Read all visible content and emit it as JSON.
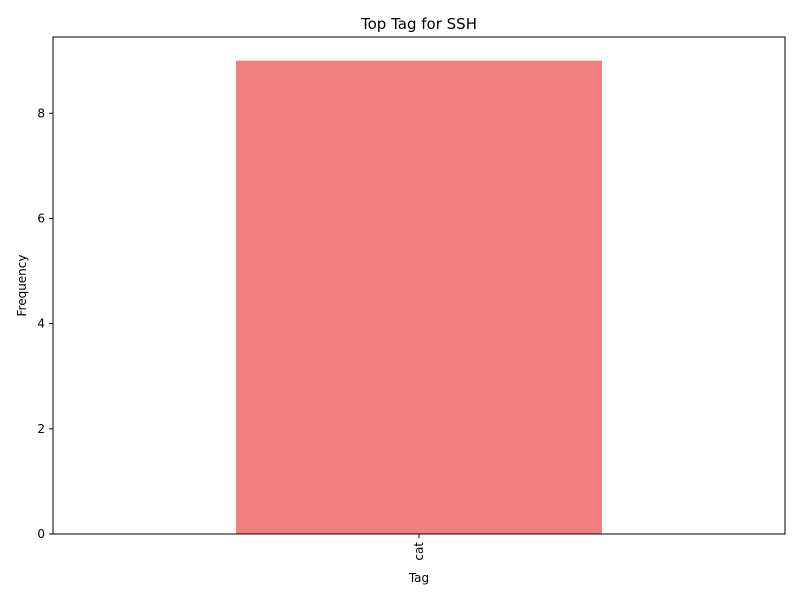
{
  "chart_data": {
    "type": "bar",
    "title": "Top Tag for SSH",
    "xlabel": "Tag",
    "ylabel": "Frequency",
    "categories": [
      "cat"
    ],
    "values": [
      9
    ],
    "ylim": [
      0,
      9.45
    ],
    "yticks": [
      0,
      2,
      4,
      6,
      8
    ],
    "bar_color": "#f08080",
    "grid": false,
    "legend": "none"
  }
}
